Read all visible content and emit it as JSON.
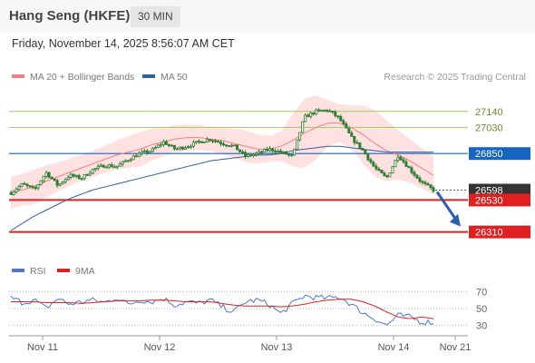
{
  "header": {
    "title": "Hang Seng (HKFE)",
    "timeframe": "30 MIN",
    "timestamp": "Friday, November 14, 2025 8:56:07 AM CET",
    "copyright": "Research © 2025 Trading Central"
  },
  "legend": {
    "ma20_label": "MA 20 + Bollinger Bands",
    "ma50_label": "MA 50",
    "rsi_label": "RSI",
    "rsi_ma_label": "9MA"
  },
  "colors": {
    "ma20": "#f08080",
    "bollinger_fill": "#ffdada",
    "ma50": "#3060a0",
    "candle": "#2e7d32",
    "resistance": "#9ccc65",
    "pivot": "#1565c0",
    "support": "#e02020",
    "arrow": "#2e5fa8",
    "rsi": "#4a78d0",
    "rsi_ma": "#e02020"
  },
  "chart_data": {
    "type": "candlestick",
    "x_tick_labels": [
      "Nov 11",
      "Nov 12",
      "Nov 13",
      "Nov 14",
      "Nov 21"
    ],
    "ylim": [
      26120,
      27320
    ],
    "last_price": 26598,
    "levels": [
      {
        "value": 27140,
        "label": "27140",
        "kind": "resistance"
      },
      {
        "value": 27030,
        "label": "27030",
        "kind": "resistance"
      },
      {
        "value": 26850,
        "label": "26850",
        "kind": "pivot"
      },
      {
        "value": 26598,
        "label": "26598",
        "kind": "last"
      },
      {
        "value": 26530,
        "label": "26530",
        "kind": "support"
      },
      {
        "value": 26310,
        "label": "26310",
        "kind": "support"
      }
    ],
    "price_anchors": [
      26580,
      26640,
      26600,
      26720,
      26630,
      26700,
      26680,
      26740,
      26770,
      26760,
      26810,
      26850,
      26870,
      26930,
      26880,
      26900,
      26930,
      26950,
      26920,
      26900,
      26830,
      26850,
      26880,
      26860,
      26830,
      27100,
      27140,
      27150,
      27090,
      26960,
      26870,
      26750,
      26680,
      26840,
      26740,
      26650,
      26598
    ],
    "ma20_anchors": [
      26580,
      26600,
      26620,
      26660,
      26690,
      26720,
      26750,
      26780,
      26810,
      26840,
      26860,
      26880,
      26910,
      26930,
      26950,
      26960,
      26960,
      26950,
      26940,
      26920,
      26900,
      26880,
      26880,
      26900,
      26940,
      26990,
      27030,
      27060,
      27060,
      27030,
      26980,
      26920,
      26870,
      26840,
      26800,
      26750,
      26700
    ],
    "ma50_anchors": [
      26320,
      26370,
      26420,
      26460,
      26500,
      26540,
      26570,
      26600,
      26620,
      26640,
      26660,
      26680,
      26700,
      26720,
      26740,
      26760,
      26780,
      26800,
      26810,
      26820,
      26830,
      26840,
      26840,
      26850,
      26870,
      26880,
      26890,
      26900,
      26900,
      26890,
      26880,
      26870,
      26860,
      26860,
      26860,
      26860,
      26860
    ],
    "band_width_anchors": [
      110,
      110,
      120,
      110,
      100,
      95,
      90,
      90,
      95,
      100,
      110,
      120,
      110,
      100,
      95,
      90,
      85,
      85,
      90,
      100,
      110,
      100,
      90,
      100,
      180,
      240,
      220,
      160,
      130,
      150,
      200,
      230,
      210,
      170,
      150,
      140,
      130
    ],
    "rsi": {
      "ticks": [
        70,
        50,
        30
      ],
      "ylim": [
        20,
        80
      ],
      "rsi_anchors": [
        63,
        57,
        60,
        50,
        62,
        55,
        58,
        60,
        57,
        63,
        55,
        60,
        58,
        62,
        54,
        58,
        56,
        60,
        52,
        46,
        58,
        60,
        55,
        44,
        56,
        65,
        63,
        62,
        64,
        55,
        45,
        38,
        30,
        42,
        40,
        34,
        34
      ],
      "ma_anchors": [
        58,
        58,
        58,
        57,
        57,
        57,
        56,
        57,
        58,
        59,
        59,
        59,
        60,
        60,
        59,
        58,
        58,
        58,
        56,
        54,
        53,
        53,
        53,
        52,
        53,
        55,
        58,
        60,
        61,
        61,
        58,
        53,
        46,
        40,
        38,
        40,
        38
      ]
    }
  }
}
